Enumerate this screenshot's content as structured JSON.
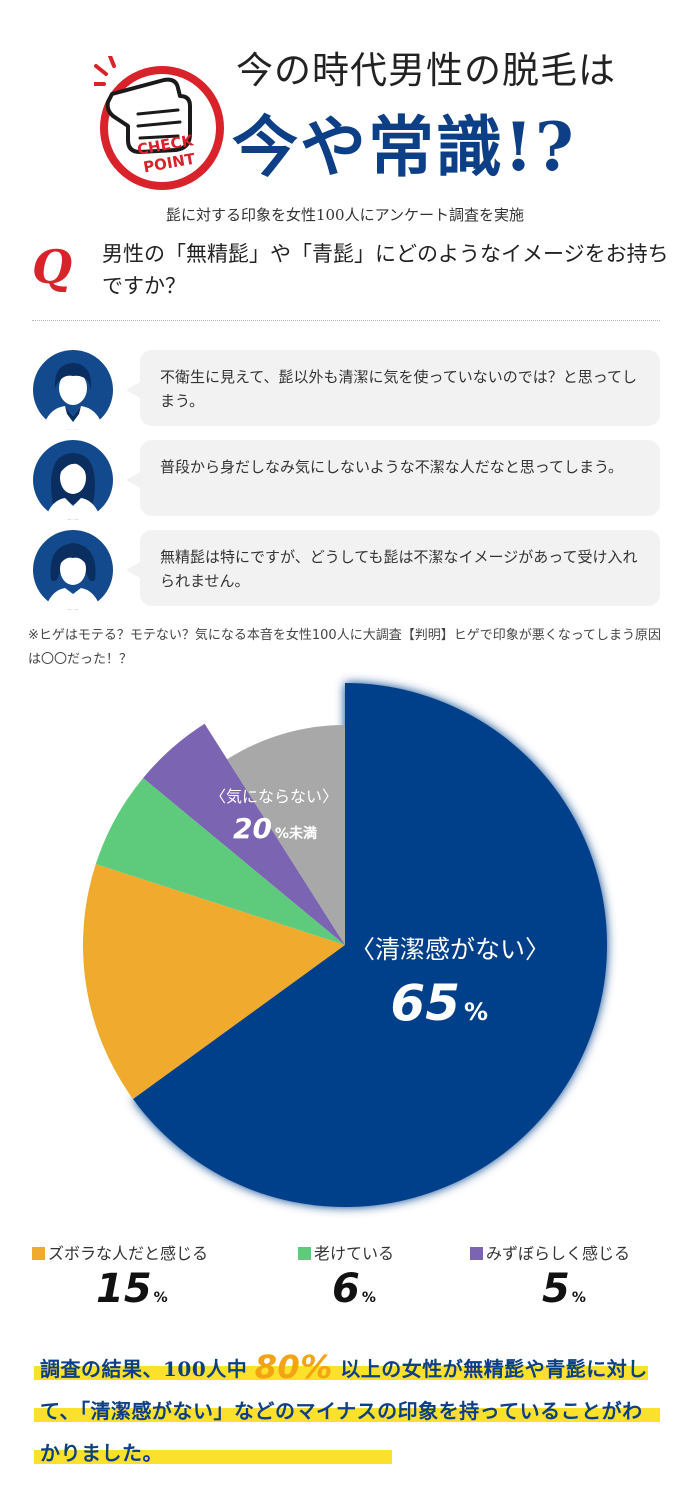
{
  "header": {
    "badge_line1": "CHECK",
    "badge_line2": "POINT",
    "title_line1": "今の時代男性の脱毛は",
    "title_line2": "今や常識!?",
    "survey_note": "髭に対する印象を女性100人にアンケート調査を実施"
  },
  "question": {
    "mark": "Q",
    "text": "男性の「無精髭」や「青髭」にどのようなイメージをお持ちですか？"
  },
  "comments": [
    {
      "avatar_icon": "woman-short-hair-icon",
      "text": "不衛生に見えて、髭以外も清潔に気を使っていないのでは？と思ってしまう。"
    },
    {
      "avatar_icon": "woman-long-hair-icon",
      "text": "普段から身だしなみ気にしないような不潔な人だなと思ってしまう。"
    },
    {
      "avatar_icon": "woman-bob-hair-icon",
      "text": "無精髭は特にですが、どうしても髭は不潔なイメージがあって受け入れられません。"
    }
  ],
  "source_note": "※ヒゲはモテる？モテない？気になる本音を女性100人に大調査【判明】ヒゲで印象が悪くなってしまう原因は〇〇だった！？",
  "chart_data": {
    "type": "pie",
    "slices": [
      {
        "name": "清潔感がない",
        "value": 65,
        "color": "#06418b"
      },
      {
        "name": "ズボラな人だと感じる",
        "value": 15,
        "color": "#f0aa2e"
      },
      {
        "name": "老けている",
        "value": 6,
        "color": "#5ecb7c"
      },
      {
        "name": "みすぼらしく感じる",
        "value": 5,
        "color": "#7b64b2"
      },
      {
        "name": "気にならない",
        "value": 9,
        "color": "#a8a8a8"
      }
    ],
    "labels": {
      "main_name": "〈清潔感がない〉",
      "main_value": "65",
      "main_unit": "%",
      "gray_name": "〈気にならない〉",
      "gray_value": "20",
      "gray_unit": "%未満"
    },
    "legend": [
      {
        "label": "ズボラな人だと感じる",
        "value": "15",
        "unit": "%",
        "color": "#f0aa2e"
      },
      {
        "label": "老けている",
        "value": "6",
        "unit": "%",
        "color": "#5ecb7c"
      },
      {
        "label": "みずぼらしく感じる",
        "value": "5",
        "unit": "%",
        "color": "#7b64b2"
      }
    ]
  },
  "conclusion": {
    "part1": "調査の結果、100人中",
    "pct": "80%",
    "part2": "以上の女性が無精髭や青髭に対して、「清潔感がない」などのマイナスの印象を持っていることがわかりました。"
  }
}
